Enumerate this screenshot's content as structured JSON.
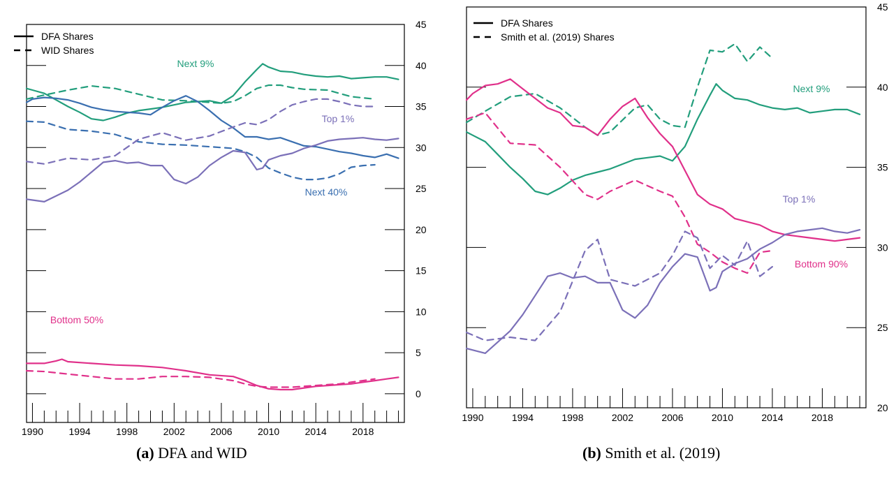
{
  "captions": {
    "a_label": "(a)",
    "a_text": "DFA and WID",
    "b_label": "(b)",
    "b_text": "Smith et al. (2019)"
  },
  "colors": {
    "green": "#229e7c",
    "blue": "#3a6fb0",
    "purple": "#7b70b8",
    "pink": "#e0308a"
  },
  "chart_data": [
    {
      "id": "a",
      "type": "line",
      "title": "",
      "xlabel": "",
      "ylabel": "",
      "xlim": [
        1989.5,
        2021.5
      ],
      "ylim": [
        -3.5,
        45
      ],
      "x_ticks": [
        "1990",
        "1994",
        "1998",
        "2002",
        "2006",
        "2010",
        "2014",
        "2018"
      ],
      "y_ticks": [
        "0",
        "5",
        "10",
        "15",
        "20",
        "25",
        "30",
        "35",
        "40",
        "45"
      ],
      "legend": {
        "position": "top-left",
        "entries": [
          {
            "label": "DFA Shares",
            "style": "solid"
          },
          {
            "label": "WID Shares",
            "style": "dashed"
          }
        ]
      },
      "annotations": [
        {
          "text": "Next 9%",
          "color": "green"
        },
        {
          "text": "Top 1%",
          "color": "purple"
        },
        {
          "text": "Next 40%",
          "color": "blue"
        },
        {
          "text": "Bottom 50%",
          "color": "pink"
        }
      ],
      "series": [
        {
          "name": "Next 9%",
          "source": "DFA",
          "color": "green",
          "style": "solid",
          "x": [
            1989.5,
            1990,
            1991,
            1992,
            1993,
            1994,
            1995,
            1996,
            1997,
            1998,
            1999,
            2000,
            2001,
            2002,
            2003,
            2004,
            2005,
            2006,
            2007,
            2008,
            2009,
            2009.5,
            2010,
            2011,
            2012,
            2013,
            2014,
            2015,
            2016,
            2017,
            2018,
            2019,
            2020,
            2021
          ],
          "y": [
            37.2,
            37.0,
            36.6,
            35.8,
            35.0,
            34.3,
            33.5,
            33.3,
            33.7,
            34.2,
            34.5,
            34.7,
            34.9,
            35.2,
            35.5,
            35.6,
            35.7,
            35.4,
            36.3,
            38.0,
            39.5,
            40.2,
            39.8,
            39.3,
            39.2,
            38.9,
            38.7,
            38.6,
            38.7,
            38.4,
            38.5,
            38.6,
            38.6,
            38.3
          ]
        },
        {
          "name": "Next 9%",
          "source": "WID",
          "color": "green",
          "style": "dashed",
          "x": [
            1989.5,
            1991,
            1993,
            1995,
            1997,
            1999,
            2001,
            2003,
            2005,
            2006,
            2007,
            2008,
            2009,
            2010,
            2011,
            2012,
            2013,
            2015,
            2017,
            2019
          ],
          "y": [
            35.9,
            36.4,
            37.0,
            37.5,
            37.2,
            36.5,
            35.8,
            35.7,
            35.5,
            35.4,
            35.6,
            36.3,
            37.2,
            37.6,
            37.6,
            37.3,
            37.1,
            37.0,
            36.2,
            35.9
          ]
        },
        {
          "name": "Next 40%",
          "source": "DFA",
          "color": "blue",
          "style": "solid",
          "x": [
            1989.5,
            1990,
            1991,
            1992,
            1993,
            1994,
            1995,
            1996,
            1997,
            1998,
            1999,
            2000,
            2001,
            2002,
            2003,
            2004,
            2005,
            2006,
            2007,
            2008,
            2009,
            2010,
            2011,
            2012,
            2013,
            2014,
            2015,
            2016,
            2017,
            2018,
            2019,
            2020,
            2021
          ],
          "y": [
            35.5,
            35.9,
            36.1,
            36.0,
            35.8,
            35.4,
            34.9,
            34.6,
            34.4,
            34.3,
            34.2,
            34.0,
            34.9,
            35.7,
            36.3,
            35.6,
            34.5,
            33.3,
            32.4,
            31.3,
            31.3,
            31.0,
            31.2,
            30.7,
            30.2,
            30.1,
            29.8,
            29.5,
            29.3,
            29.0,
            28.8,
            29.2,
            28.7
          ]
        },
        {
          "name": "Next 40%",
          "source": "WID",
          "color": "blue",
          "style": "dashed",
          "x": [
            1989.5,
            1991,
            1993,
            1995,
            1997,
            1999,
            2001,
            2003,
            2005,
            2007,
            2008,
            2009,
            2010,
            2011,
            2012,
            2013,
            2014,
            2015,
            2016,
            2017,
            2018,
            2019
          ],
          "y": [
            33.2,
            33.1,
            32.2,
            32.0,
            31.6,
            30.7,
            30.4,
            30.3,
            30.1,
            29.9,
            29.5,
            28.8,
            27.5,
            26.9,
            26.4,
            26.1,
            26.1,
            26.3,
            26.8,
            27.6,
            27.8,
            27.9
          ]
        },
        {
          "name": "Top 1%",
          "source": "DFA",
          "color": "purple",
          "style": "solid",
          "x": [
            1989.5,
            1990,
            1991,
            1992,
            1993,
            1994,
            1995,
            1996,
            1997,
            1998,
            1999,
            2000,
            2001,
            2002,
            2003,
            2004,
            2005,
            2006,
            2007,
            2008,
            2009,
            2009.5,
            2010,
            2011,
            2012,
            2013,
            2014,
            2015,
            2016,
            2017,
            2018,
            2019,
            2020,
            2021
          ],
          "y": [
            23.7,
            23.6,
            23.4,
            24.1,
            24.8,
            25.8,
            27.0,
            28.2,
            28.4,
            28.1,
            28.2,
            27.8,
            27.8,
            26.1,
            25.6,
            26.4,
            27.8,
            28.8,
            29.6,
            29.4,
            27.3,
            27.5,
            28.5,
            29.0,
            29.3,
            29.9,
            30.3,
            30.8,
            31.0,
            31.1,
            31.2,
            31.0,
            30.9,
            31.1
          ]
        },
        {
          "name": "Top 1%",
          "source": "WID",
          "color": "purple",
          "style": "dashed",
          "x": [
            1989.5,
            1991,
            1993,
            1995,
            1997,
            1999,
            2001,
            2003,
            2005,
            2007,
            2008,
            2009,
            2010,
            2011,
            2012,
            2013,
            2014,
            2015,
            2016,
            2017,
            2018,
            2019
          ],
          "y": [
            28.3,
            28.0,
            28.7,
            28.5,
            29.0,
            31.0,
            31.8,
            30.9,
            31.4,
            32.5,
            33.0,
            32.8,
            33.4,
            34.4,
            35.2,
            35.6,
            35.9,
            35.9,
            35.6,
            35.2,
            35.0,
            35.0
          ]
        },
        {
          "name": "Bottom 50%",
          "source": "DFA",
          "color": "pink",
          "style": "solid",
          "x": [
            1989.5,
            1991,
            1992,
            1992.5,
            1993,
            1995,
            1997,
            1999,
            2001,
            2003,
            2005,
            2007,
            2008,
            2009,
            2010,
            2011,
            2012,
            2013,
            2014,
            2015,
            2016,
            2017,
            2018,
            2019,
            2020,
            2021
          ],
          "y": [
            3.7,
            3.7,
            4.0,
            4.2,
            3.9,
            3.7,
            3.5,
            3.4,
            3.2,
            2.8,
            2.3,
            2.1,
            1.6,
            1.0,
            0.6,
            0.5,
            0.5,
            0.7,
            0.9,
            1.0,
            1.1,
            1.2,
            1.4,
            1.6,
            1.8,
            2.0
          ]
        },
        {
          "name": "Bottom 50%",
          "source": "WID",
          "color": "pink",
          "style": "dashed",
          "x": [
            1989.5,
            1991,
            1993,
            1995,
            1997,
            1999,
            2001,
            2003,
            2005,
            2007,
            2008,
            2009,
            2010,
            2011,
            2012,
            2013,
            2014,
            2015,
            2016,
            2017,
            2018,
            2019
          ],
          "y": [
            2.8,
            2.7,
            2.4,
            2.1,
            1.8,
            1.8,
            2.1,
            2.1,
            2.0,
            1.6,
            1.2,
            0.9,
            0.8,
            0.8,
            0.8,
            0.9,
            1.0,
            1.1,
            1.2,
            1.4,
            1.6,
            1.8
          ]
        }
      ]
    },
    {
      "id": "b",
      "type": "line",
      "title": "",
      "xlabel": "",
      "ylabel": "",
      "xlim": [
        1989.5,
        2021.5
      ],
      "ylim": [
        20,
        45
      ],
      "x_ticks": [
        "1990",
        "1994",
        "1998",
        "2002",
        "2006",
        "2010",
        "2014",
        "2018"
      ],
      "y_ticks": [
        "20",
        "25",
        "30",
        "35",
        "40",
        "45"
      ],
      "legend": {
        "position": "top-left",
        "entries": [
          {
            "label": "DFA Shares",
            "style": "solid"
          },
          {
            "label": "Smith et al. (2019) Shares",
            "style": "dashed"
          }
        ]
      },
      "annotations": [
        {
          "text": "Next 9%",
          "color": "green"
        },
        {
          "text": "Top 1%",
          "color": "purple"
        },
        {
          "text": "Bottom 90%",
          "color": "pink"
        }
      ],
      "series": [
        {
          "name": "Next 9%",
          "source": "DFA",
          "color": "green",
          "style": "solid",
          "x": [
            1989.5,
            1990,
            1991,
            1992,
            1993,
            1994,
            1995,
            1996,
            1997,
            1998,
            1999,
            2000,
            2001,
            2002,
            2003,
            2004,
            2005,
            2006,
            2007,
            2008,
            2009,
            2009.5,
            2010,
            2011,
            2012,
            2013,
            2014,
            2015,
            2016,
            2017,
            2018,
            2019,
            2020,
            2021
          ],
          "y": [
            37.2,
            37.0,
            36.6,
            35.8,
            35.0,
            34.3,
            33.5,
            33.3,
            33.7,
            34.2,
            34.5,
            34.7,
            34.9,
            35.2,
            35.5,
            35.6,
            35.7,
            35.4,
            36.3,
            38.0,
            39.5,
            40.2,
            39.8,
            39.3,
            39.2,
            38.9,
            38.7,
            38.6,
            38.7,
            38.4,
            38.5,
            38.6,
            38.6,
            38.3
          ]
        },
        {
          "name": "Next 9%",
          "source": "Smith et al. (2019)",
          "color": "green",
          "style": "dashed",
          "x": [
            1989.5,
            1991,
            1993,
            1995,
            1997,
            1999,
            2000,
            2001,
            2003,
            2004,
            2005,
            2006,
            2007,
            2008,
            2009,
            2010,
            2011,
            2012,
            2013,
            2014
          ],
          "y": [
            37.8,
            38.5,
            39.4,
            39.6,
            38.7,
            37.5,
            37.0,
            37.2,
            38.7,
            38.9,
            38.0,
            37.6,
            37.5,
            40.0,
            42.3,
            42.2,
            42.7,
            41.6,
            42.5,
            41.8
          ]
        },
        {
          "name": "Bottom 90%",
          "source": "DFA",
          "color": "pink",
          "style": "solid",
          "x": [
            1989.5,
            1990,
            1991,
            1992,
            1993,
            1994,
            1995,
            1996,
            1997,
            1998,
            1999,
            2000,
            2001,
            2002,
            2003,
            2004,
            2005,
            2006,
            2007,
            2008,
            2009,
            2010,
            2011,
            2012,
            2013,
            2014,
            2015,
            2016,
            2017,
            2018,
            2019,
            2020,
            2021
          ],
          "y": [
            39.2,
            39.6,
            40.1,
            40.2,
            40.5,
            39.9,
            39.3,
            38.7,
            38.4,
            37.6,
            37.5,
            37.0,
            38.0,
            38.8,
            39.3,
            38.1,
            37.1,
            36.3,
            34.8,
            33.3,
            32.7,
            32.4,
            31.8,
            31.6,
            31.4,
            31.0,
            30.8,
            30.7,
            30.6,
            30.5,
            30.4,
            30.5,
            30.6
          ]
        },
        {
          "name": "Bottom 90%",
          "source": "Smith et al. (2019)",
          "color": "pink",
          "style": "dashed",
          "x": [
            1989.5,
            1991,
            1993,
            1995,
            1997,
            1999,
            2000,
            2001,
            2003,
            2005,
            2006,
            2007,
            2008,
            2009,
            2010,
            2011,
            2012,
            2013,
            2014
          ],
          "y": [
            38.0,
            38.4,
            36.5,
            36.4,
            35.0,
            33.3,
            33.0,
            33.5,
            34.2,
            33.5,
            33.2,
            31.9,
            30.2,
            29.7,
            29.1,
            28.7,
            28.4,
            29.7,
            29.8
          ]
        },
        {
          "name": "Top 1%",
          "source": "DFA",
          "color": "purple",
          "style": "solid",
          "x": [
            1989.5,
            1990,
            1991,
            1992,
            1993,
            1994,
            1995,
            1996,
            1997,
            1998,
            1999,
            2000,
            2001,
            2002,
            2003,
            2004,
            2005,
            2006,
            2007,
            2008,
            2009,
            2009.5,
            2010,
            2011,
            2012,
            2013,
            2014,
            2015,
            2016,
            2017,
            2018,
            2019,
            2020,
            2021
          ],
          "y": [
            23.7,
            23.6,
            23.4,
            24.1,
            24.8,
            25.8,
            27.0,
            28.2,
            28.4,
            28.1,
            28.2,
            27.8,
            27.8,
            26.1,
            25.6,
            26.4,
            27.8,
            28.8,
            29.6,
            29.4,
            27.3,
            27.5,
            28.5,
            29.0,
            29.3,
            29.9,
            30.3,
            30.8,
            31.0,
            31.1,
            31.2,
            31.0,
            30.9,
            31.1
          ]
        },
        {
          "name": "Top 1%",
          "source": "Smith et al. (2019)",
          "color": "purple",
          "style": "dashed",
          "x": [
            1989.5,
            1991,
            1993,
            1995,
            1997,
            1999,
            2000,
            2001,
            2003,
            2005,
            2006,
            2007,
            2008,
            2009,
            2010,
            2011,
            2012,
            2013,
            2014
          ],
          "y": [
            24.7,
            24.2,
            24.4,
            24.2,
            26.0,
            29.8,
            30.5,
            28.0,
            27.6,
            28.4,
            29.5,
            31.0,
            30.6,
            28.7,
            29.5,
            28.9,
            30.4,
            28.2,
            28.8
          ]
        }
      ]
    }
  ]
}
